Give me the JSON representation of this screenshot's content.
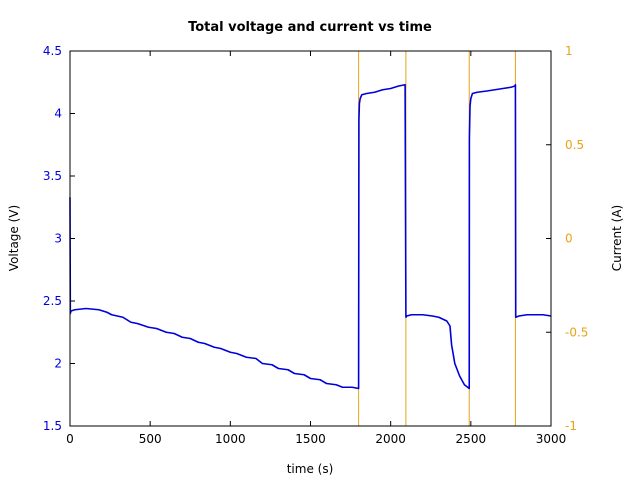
{
  "chart_data": {
    "type": "line",
    "title": "Total voltage and current vs time",
    "xlabel": "time (s)",
    "ylabel": "Voltage (V)",
    "y2label": "Current (A)",
    "xlim": [
      0,
      3000
    ],
    "ylim": [
      1.5,
      4.5
    ],
    "y2lim": [
      -1,
      1
    ],
    "x_ticks": [
      "0",
      "500",
      "1000",
      "1500",
      "2000",
      "2500",
      "3000"
    ],
    "y_ticks": [
      "1.5",
      "2",
      "2.5",
      "3",
      "3.5",
      "4",
      "4.5"
    ],
    "y2_ticks": [
      "-1",
      "-0.5",
      "0",
      "0.5",
      "1"
    ],
    "grid": false,
    "colors": {
      "voltage": "#0000dd",
      "current": "#e8a317",
      "left_axis": "#0000dd",
      "right_axis": "#e8a317"
    },
    "series": [
      {
        "axis": "left",
        "x": [
          0,
          2,
          4,
          6,
          30,
          100,
          180,
          230,
          260,
          330,
          380,
          420,
          490,
          540,
          600,
          650,
          700,
          750,
          800,
          840,
          900,
          940,
          1000,
          1040,
          1100,
          1160,
          1200,
          1260,
          1300,
          1360,
          1400,
          1460,
          1500,
          1560,
          1600,
          1660,
          1700,
          1760,
          1800,
          1802,
          1805,
          1810,
          1820,
          1850,
          1900,
          1950,
          2000,
          2050,
          2090,
          2095,
          2096,
          2100,
          2130,
          2200,
          2260,
          2300,
          2350,
          2370,
          2380,
          2400,
          2430,
          2460,
          2480,
          2490,
          2491,
          2495,
          2500,
          2510,
          2540,
          2600,
          2650,
          2700,
          2750,
          2775,
          2778,
          2780,
          2800,
          2850,
          2900,
          2950,
          3000
        ],
        "y": [
          3.33,
          2.4,
          2.41,
          2.42,
          2.43,
          2.44,
          2.43,
          2.41,
          2.39,
          2.37,
          2.33,
          2.32,
          2.29,
          2.28,
          2.25,
          2.24,
          2.21,
          2.2,
          2.17,
          2.16,
          2.13,
          2.12,
          2.09,
          2.08,
          2.05,
          2.04,
          2.0,
          1.99,
          1.96,
          1.95,
          1.92,
          1.91,
          1.88,
          1.87,
          1.84,
          1.83,
          1.81,
          1.81,
          1.8,
          3.95,
          4.08,
          4.12,
          4.15,
          4.16,
          4.17,
          4.19,
          4.2,
          4.22,
          4.23,
          2.38,
          2.37,
          2.38,
          2.39,
          2.39,
          2.38,
          2.37,
          2.34,
          2.3,
          2.15,
          2.0,
          1.9,
          1.83,
          1.81,
          1.8,
          3.8,
          4.06,
          4.12,
          4.16,
          4.17,
          4.18,
          4.19,
          4.2,
          4.21,
          4.22,
          4.23,
          2.37,
          2.38,
          2.39,
          2.39,
          2.39,
          2.38
        ]
      },
      {
        "axis": "right",
        "x": [
          1800,
          2095,
          2490,
          2778
        ],
        "y": [
          -1,
          -1,
          -1,
          -1
        ]
      }
    ]
  }
}
